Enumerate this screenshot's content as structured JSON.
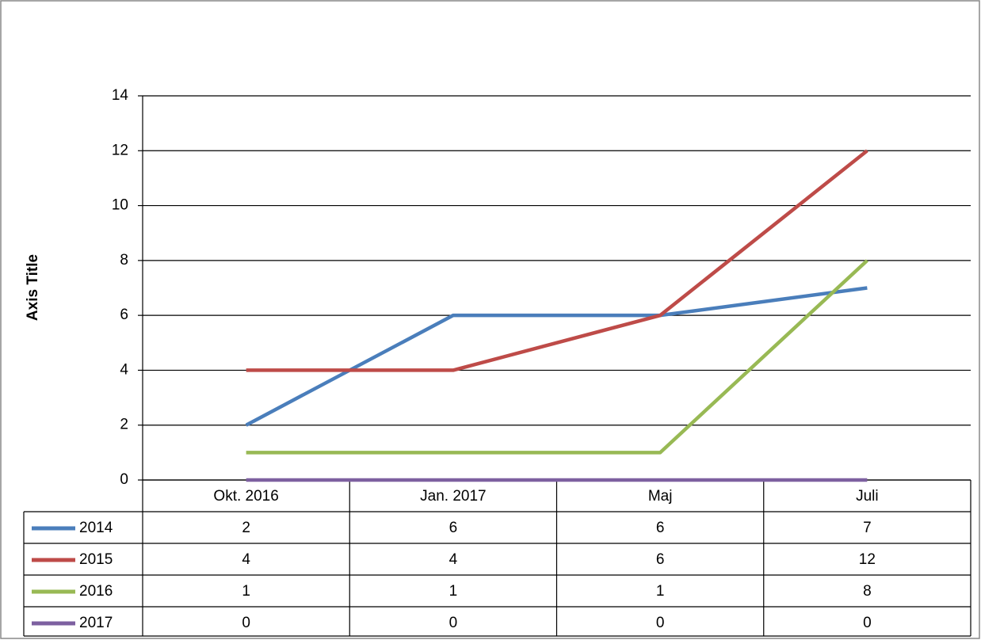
{
  "chart_data": {
    "type": "line",
    "y_axis_label": "Axis Title",
    "categories": [
      "Okt. 2016",
      "Jan. 2017",
      "Maj",
      "Juli"
    ],
    "series": [
      {
        "name": "2014",
        "color": "#4a7ebb",
        "values": [
          2,
          6,
          6,
          7
        ]
      },
      {
        "name": "2015",
        "color": "#be4b48",
        "values": [
          4,
          4,
          6,
          12
        ]
      },
      {
        "name": "2016",
        "color": "#98b954",
        "values": [
          1,
          1,
          1,
          8
        ]
      },
      {
        "name": "2017",
        "color": "#7d60a0",
        "values": [
          0,
          0,
          0,
          0
        ]
      }
    ],
    "ylim": [
      0,
      14
    ],
    "yticks": [
      0,
      2,
      4,
      6,
      8,
      10,
      12,
      14
    ],
    "grid": true,
    "data_table": true
  }
}
